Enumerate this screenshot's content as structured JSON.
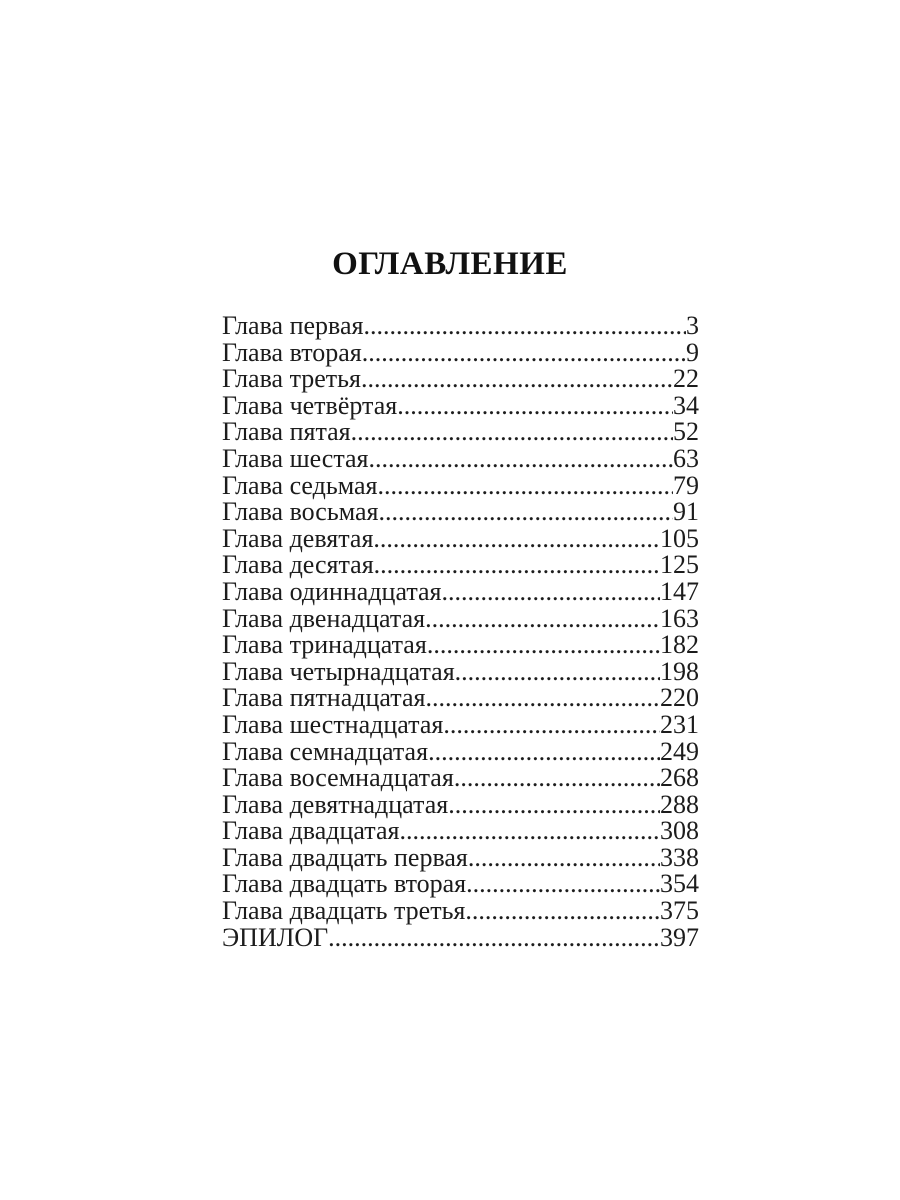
{
  "page": {
    "title": "ОГЛАВЛЕНИЕ"
  },
  "colors": {
    "background": "#ffffff",
    "text": "#1c1c1c"
  },
  "toc": {
    "entries": [
      {
        "label": "Глава первая",
        "page": "3"
      },
      {
        "label": "Глава вторая",
        "page": "9"
      },
      {
        "label": "Глава третья",
        "page": "22"
      },
      {
        "label": "Глава четвёртая",
        "page": "34"
      },
      {
        "label": "Глава пятая",
        "page": "52"
      },
      {
        "label": "Глава шестая",
        "page": "63"
      },
      {
        "label": "Глава седьмая",
        "page": "79"
      },
      {
        "label": "Глава восьмая",
        "page": "91"
      },
      {
        "label": "Глава девятая",
        "page": "105"
      },
      {
        "label": "Глава десятая",
        "page": "125"
      },
      {
        "label": "Глава одиннадцатая",
        "page": "147"
      },
      {
        "label": "Глава двенадцатая",
        "page": "163"
      },
      {
        "label": "Глава тринадцатая",
        "page": "182"
      },
      {
        "label": "Глава четырнадцатая",
        "page": "198"
      },
      {
        "label": "Глава пятнадцатая",
        "page": "220"
      },
      {
        "label": "Глава шестнадцатая",
        "page": "231"
      },
      {
        "label": "Глава семнадцатая",
        "page": "249"
      },
      {
        "label": "Глава восемнадцатая",
        "page": "268"
      },
      {
        "label": "Глава девятнадцатая",
        "page": "288"
      },
      {
        "label": "Глава двадцатая",
        "page": "308"
      },
      {
        "label": "Глава двадцать первая",
        "page": "338"
      },
      {
        "label": "Глава двадцать вторая",
        "page": "354"
      },
      {
        "label": "Глава двадцать третья",
        "page": "375"
      },
      {
        "label": "ЭПИЛОГ",
        "page": "397"
      }
    ]
  }
}
